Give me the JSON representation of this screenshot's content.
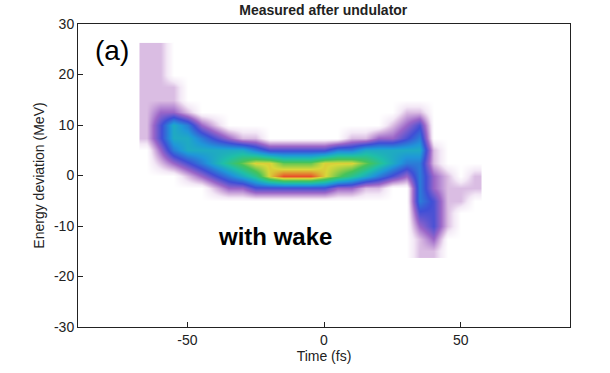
{
  "chart_data": {
    "type": "heatmap",
    "title": "Measured after undulator",
    "xlabel": "Time (fs)",
    "ylabel": "Energy deviation (MeV)",
    "annotations": [
      "(a)",
      "with wake"
    ],
    "xlim": [
      -90,
      90
    ],
    "ylim": [
      -30,
      30
    ],
    "xticks": [
      -50,
      0,
      50
    ],
    "yticks": [
      -30,
      -20,
      -10,
      0,
      10,
      20,
      30
    ],
    "x": [
      -65,
      -60,
      -55,
      -50,
      -45,
      -40,
      -35,
      -30,
      -25,
      -20,
      -15,
      -10,
      -5,
      0,
      5,
      10,
      15,
      20,
      25,
      30,
      35,
      40,
      45,
      50,
      55
    ],
    "y": [
      -15,
      -12.5,
      -10,
      -7.5,
      -5,
      -2.5,
      0,
      2.5,
      5,
      7.5,
      10,
      12.5,
      15,
      17.5,
      20,
      22.5,
      25
    ],
    "z": [
      [
        0,
        0,
        0,
        0,
        0,
        0,
        0,
        0,
        0,
        0,
        0,
        0,
        0,
        0,
        0,
        0,
        0,
        0,
        0,
        0,
        1,
        1,
        0,
        0,
        0
      ],
      [
        0,
        0,
        0,
        0,
        0,
        0,
        0,
        0,
        0,
        0,
        0,
        0,
        0,
        0,
        0,
        0,
        0,
        0,
        0,
        0,
        1,
        2,
        0,
        0,
        0
      ],
      [
        0,
        0,
        0,
        0,
        0,
        0,
        0,
        0,
        0,
        0,
        0,
        0,
        0,
        0,
        0,
        0,
        0,
        0,
        0,
        0,
        2,
        3,
        1,
        0,
        0
      ],
      [
        0,
        0,
        0,
        0,
        0,
        0,
        0,
        0,
        0,
        0,
        0,
        0,
        0,
        0,
        0,
        0,
        0,
        0,
        0,
        0,
        3,
        3,
        1,
        0,
        0
      ],
      [
        0,
        0,
        0,
        0,
        0,
        0,
        0,
        0,
        0,
        0,
        0,
        0,
        0,
        0,
        0,
        0,
        0,
        0,
        0,
        0,
        4,
        3,
        1,
        1,
        0
      ],
      [
        0,
        0,
        0,
        0,
        0,
        1,
        2,
        2,
        3,
        3,
        3,
        3,
        3,
        3,
        2,
        2,
        1,
        1,
        0,
        0,
        4,
        2,
        1,
        1,
        1
      ],
      [
        0,
        0,
        0,
        1,
        2,
        3,
        4,
        5,
        6,
        8,
        9,
        9,
        9,
        8,
        7,
        6,
        5,
        4,
        3,
        2,
        4,
        2,
        1,
        0,
        1
      ],
      [
        0,
        1,
        2,
        3,
        4,
        5,
        6,
        7,
        8,
        8,
        7,
        7,
        7,
        8,
        8,
        8,
        7,
        6,
        5,
        4,
        4,
        1,
        0,
        0,
        0
      ],
      [
        0,
        2,
        4,
        5,
        5,
        5,
        5,
        5,
        4,
        3,
        3,
        3,
        3,
        3,
        4,
        4,
        5,
        5,
        5,
        5,
        5,
        1,
        0,
        0,
        0
      ],
      [
        1,
        3,
        5,
        5,
        4,
        3,
        2,
        1,
        1,
        0,
        0,
        0,
        0,
        0,
        0,
        1,
        1,
        2,
        2,
        3,
        4,
        0,
        0,
        0,
        0
      ],
      [
        1,
        3,
        5,
        4,
        2,
        1,
        0,
        0,
        0,
        0,
        0,
        0,
        0,
        0,
        0,
        0,
        0,
        0,
        1,
        2,
        3,
        0,
        0,
        0,
        0
      ],
      [
        1,
        2,
        2,
        1,
        0,
        0,
        0,
        0,
        0,
        0,
        0,
        0,
        0,
        0,
        0,
        0,
        0,
        0,
        0,
        1,
        1,
        0,
        0,
        0,
        0
      ],
      [
        1,
        1,
        1,
        0,
        0,
        0,
        0,
        0,
        0,
        0,
        0,
        0,
        0,
        0,
        0,
        0,
        0,
        0,
        0,
        0,
        0,
        0,
        0,
        0,
        0
      ],
      [
        1,
        1,
        1,
        0,
        0,
        0,
        0,
        0,
        0,
        0,
        0,
        0,
        0,
        0,
        0,
        0,
        0,
        0,
        0,
        0,
        0,
        0,
        0,
        0,
        0
      ],
      [
        1,
        1,
        0,
        0,
        0,
        0,
        0,
        0,
        0,
        0,
        0,
        0,
        0,
        0,
        0,
        0,
        0,
        0,
        0,
        0,
        0,
        0,
        0,
        0,
        0
      ],
      [
        1,
        1,
        0,
        0,
        0,
        0,
        0,
        0,
        0,
        0,
        0,
        0,
        0,
        0,
        0,
        0,
        0,
        0,
        0,
        0,
        0,
        0,
        0,
        0,
        0
      ],
      [
        1,
        1,
        0,
        0,
        0,
        0,
        0,
        0,
        0,
        0,
        0,
        0,
        0,
        0,
        0,
        0,
        0,
        0,
        0,
        0,
        0,
        0,
        0,
        0,
        0
      ]
    ]
  }
}
